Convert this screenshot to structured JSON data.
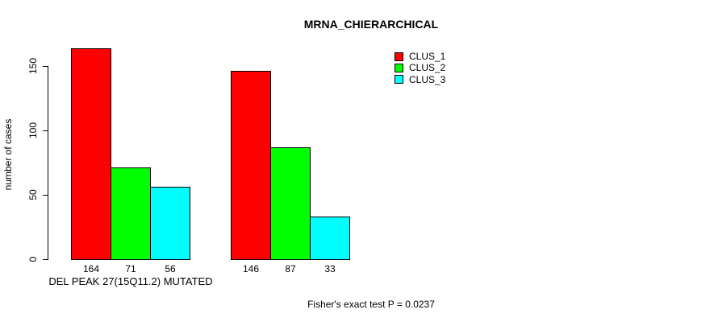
{
  "chart_data": {
    "type": "bar",
    "title": "MRNA_CHIERARCHICAL",
    "ylabel": "number of cases",
    "ylim": [
      0,
      150
    ],
    "yticks": [
      0,
      50,
      100,
      150
    ],
    "grid": false,
    "legend_position": "top-right",
    "bar_border_color": "#000000",
    "categories": [
      "DEL PEAK 27(15Q11.2) MUTATED",
      ""
    ],
    "series": [
      {
        "name": "CLUS_1",
        "color": "#FF0000",
        "values": [
          164,
          146
        ]
      },
      {
        "name": "CLUS_2",
        "color": "#00FF00",
        "values": [
          71,
          87
        ]
      },
      {
        "name": "CLUS_3",
        "color": "#00FFFF",
        "values": [
          56,
          33
        ]
      }
    ],
    "value_labels_shown": true,
    "annotation": "Fisher's exact test P = 0.0237"
  }
}
